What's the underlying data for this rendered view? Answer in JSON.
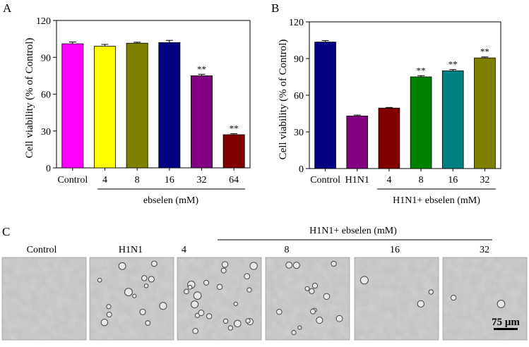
{
  "chart_data": [
    {
      "panel": "A",
      "type": "bar",
      "ylabel": "Cell viability (% of Control)",
      "xlabel": "ebselen (mM)",
      "ylim": [
        0,
        120
      ],
      "yticks": [
        "0",
        "30",
        "60",
        "90",
        "120"
      ],
      "categories": [
        "Control",
        "4",
        "8",
        "16",
        "32",
        "64"
      ],
      "values": [
        101,
        99,
        101.5,
        102,
        75,
        27
      ],
      "errors": [
        1.5,
        1.5,
        0.8,
        1.8,
        1.2,
        0.8
      ],
      "significance": [
        "",
        "",
        "",
        "",
        "**",
        "**"
      ],
      "colors": [
        "#ff00ff",
        "#ffff00",
        "#808000",
        "#000080",
        "#800080",
        "#800000"
      ]
    },
    {
      "panel": "B",
      "type": "bar",
      "ylabel": "Cell viability (% of Control)",
      "xlabel": "H1N1+ ebselen (mM)",
      "ylim": [
        0,
        120
      ],
      "yticks": [
        "0",
        "30",
        "60",
        "90",
        "120"
      ],
      "categories": [
        "Control",
        "H1N1",
        "4",
        "8",
        "16",
        "32"
      ],
      "values": [
        103.5,
        43,
        49.5,
        75,
        80,
        90.5
      ],
      "errors": [
        1.2,
        0.8,
        0.5,
        1.0,
        1.0,
        0.8
      ],
      "significance": [
        "",
        "",
        "",
        "**",
        "**",
        "**"
      ],
      "colors": [
        "#000080",
        "#800080",
        "#800000",
        "#008000",
        "#008080",
        "#808000"
      ]
    }
  ],
  "panelC": {
    "letter": "C",
    "group_label": "H1N1+ ebselen (mM)",
    "labels": [
      "Control",
      "H1N1",
      "4",
      "8",
      "16",
      "32"
    ],
    "scale_bar": "75 μm"
  }
}
